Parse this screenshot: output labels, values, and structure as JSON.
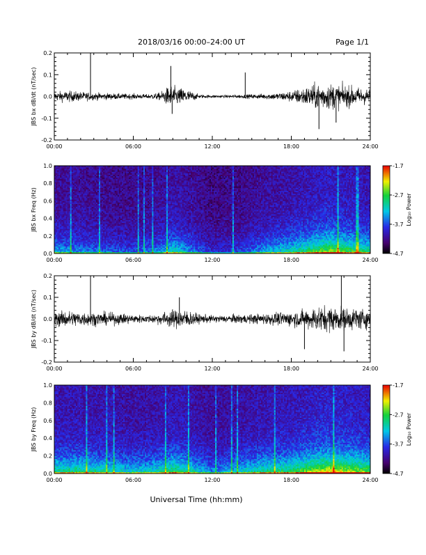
{
  "header": {
    "title": "2018/03/16  00:00–24:00 UT",
    "page_label": "Page 1/1"
  },
  "footer": {
    "xlabel": "Universal Time (hh:mm)"
  },
  "chart_data": [
    {
      "type": "line",
      "id": "bx-waveform",
      "ylabel": "JBS bx dB/dt (nT/sec)",
      "x_ticks": [
        "00:00",
        "06:00",
        "12:00",
        "18:00",
        "24:00"
      ],
      "xlim_hours": [
        0,
        24
      ],
      "ylim": [
        -0.2,
        0.2
      ],
      "y_ticks": [
        "-0.2",
        "-0.1",
        "0.0",
        "0.1",
        "0.2"
      ],
      "color": "#000000",
      "envelope": [
        {
          "t": 0.0,
          "amp": 0.025
        },
        {
          "t": 1.0,
          "amp": 0.03
        },
        {
          "t": 2.0,
          "amp": 0.025
        },
        {
          "t": 3.0,
          "amp": 0.02
        },
        {
          "t": 4.0,
          "amp": 0.018
        },
        {
          "t": 5.0,
          "amp": 0.015
        },
        {
          "t": 6.0,
          "amp": 0.015
        },
        {
          "t": 7.0,
          "amp": 0.012
        },
        {
          "t": 8.0,
          "amp": 0.02
        },
        {
          "t": 8.8,
          "amp": 0.06
        },
        {
          "t": 9.3,
          "amp": 0.05
        },
        {
          "t": 10.0,
          "amp": 0.04
        },
        {
          "t": 11.0,
          "amp": 0.01
        },
        {
          "t": 12.0,
          "amp": 0.008
        },
        {
          "t": 13.0,
          "amp": 0.008
        },
        {
          "t": 14.0,
          "amp": 0.01
        },
        {
          "t": 15.0,
          "amp": 0.012
        },
        {
          "t": 16.0,
          "amp": 0.015
        },
        {
          "t": 17.0,
          "amp": 0.02
        },
        {
          "t": 18.0,
          "amp": 0.03
        },
        {
          "t": 19.0,
          "amp": 0.05
        },
        {
          "t": 20.0,
          "amp": 0.07
        },
        {
          "t": 21.0,
          "amp": 0.07
        },
        {
          "t": 22.0,
          "amp": 0.06
        },
        {
          "t": 23.0,
          "amp": 0.05
        },
        {
          "t": 24.0,
          "amp": 0.04
        }
      ],
      "spikes": [
        {
          "t": 2.75,
          "value": 0.2
        },
        {
          "t": 8.85,
          "value": 0.14
        },
        {
          "t": 8.95,
          "value": -0.08
        },
        {
          "t": 14.5,
          "value": 0.11
        },
        {
          "t": 20.1,
          "value": -0.15
        },
        {
          "t": 21.4,
          "value": -0.12
        }
      ]
    },
    {
      "type": "heatmap",
      "id": "bx-spectrogram",
      "ylabel": "JBS bx Freq (Hz)",
      "x_ticks": [
        "00:00",
        "06:00",
        "12:00",
        "18:00",
        "24:00"
      ],
      "xlim_hours": [
        0,
        24
      ],
      "ylim": [
        0.0,
        1.0
      ],
      "y_ticks": [
        "0.0",
        "0.2",
        "0.4",
        "0.6",
        "0.8",
        "1.0"
      ],
      "colorbar": {
        "label": "Log₁₀ Power",
        "range": [
          -4.7,
          -1.7
        ],
        "ticks": [
          "-1.7",
          "-2.7",
          "-3.7",
          "-4.7"
        ]
      },
      "activity": [
        {
          "t": 0.0,
          "level": 0.35
        },
        {
          "t": 2.0,
          "level": 0.3
        },
        {
          "t": 4.0,
          "level": 0.25
        },
        {
          "t": 6.0,
          "level": 0.22
        },
        {
          "t": 8.0,
          "level": 0.3
        },
        {
          "t": 9.0,
          "level": 0.45
        },
        {
          "t": 10.0,
          "level": 0.35
        },
        {
          "t": 12.0,
          "level": 0.15
        },
        {
          "t": 14.0,
          "level": 0.2
        },
        {
          "t": 16.0,
          "level": 0.35
        },
        {
          "t": 18.0,
          "level": 0.45
        },
        {
          "t": 20.0,
          "level": 0.6
        },
        {
          "t": 21.0,
          "level": 0.65
        },
        {
          "t": 22.0,
          "level": 0.6
        },
        {
          "t": 24.0,
          "level": 0.5
        }
      ]
    },
    {
      "type": "line",
      "id": "by-waveform",
      "ylabel": "JBS by dB/dt (nT/sec)",
      "x_ticks": [
        "00:00",
        "06:00",
        "12:00",
        "18:00",
        "24:00"
      ],
      "xlim_hours": [
        0,
        24
      ],
      "ylim": [
        -0.2,
        0.2
      ],
      "y_ticks": [
        "-0.2",
        "-0.1",
        "0.0",
        "0.1",
        "0.2"
      ],
      "color": "#000000",
      "envelope": [
        {
          "t": 0.0,
          "amp": 0.04
        },
        {
          "t": 1.0,
          "amp": 0.045
        },
        {
          "t": 2.0,
          "amp": 0.04
        },
        {
          "t": 3.0,
          "amp": 0.035
        },
        {
          "t": 4.0,
          "amp": 0.035
        },
        {
          "t": 5.0,
          "amp": 0.03
        },
        {
          "t": 6.0,
          "amp": 0.025
        },
        {
          "t": 7.0,
          "amp": 0.02
        },
        {
          "t": 8.0,
          "amp": 0.03
        },
        {
          "t": 9.0,
          "amp": 0.05
        },
        {
          "t": 10.0,
          "amp": 0.05
        },
        {
          "t": 11.0,
          "amp": 0.025
        },
        {
          "t": 12.0,
          "amp": 0.02
        },
        {
          "t": 13.0,
          "amp": 0.02
        },
        {
          "t": 14.0,
          "amp": 0.025
        },
        {
          "t": 15.0,
          "amp": 0.025
        },
        {
          "t": 16.0,
          "amp": 0.03
        },
        {
          "t": 17.0,
          "amp": 0.035
        },
        {
          "t": 18.0,
          "amp": 0.04
        },
        {
          "t": 19.0,
          "amp": 0.05
        },
        {
          "t": 20.0,
          "amp": 0.07
        },
        {
          "t": 21.0,
          "amp": 0.07
        },
        {
          "t": 22.0,
          "amp": 0.06
        },
        {
          "t": 23.0,
          "amp": 0.06
        },
        {
          "t": 24.0,
          "amp": 0.05
        }
      ],
      "spikes": [
        {
          "t": 2.75,
          "value": 0.2
        },
        {
          "t": 21.8,
          "value": 0.2
        },
        {
          "t": 9.5,
          "value": 0.1
        },
        {
          "t": 19.0,
          "value": -0.14
        },
        {
          "t": 22.0,
          "value": -0.15
        }
      ]
    },
    {
      "type": "heatmap",
      "id": "by-spectrogram",
      "ylabel": "JBS by Freq (Hz)",
      "x_ticks": [
        "00:00",
        "06:00",
        "12:00",
        "18:00",
        "24:00"
      ],
      "xlim_hours": [
        0,
        24
      ],
      "ylim": [
        0.0,
        1.0
      ],
      "y_ticks": [
        "0.0",
        "0.2",
        "0.4",
        "0.6",
        "0.8",
        "1.0"
      ],
      "colorbar": {
        "label": "Log₁₀ Power",
        "range": [
          -4.7,
          -1.7
        ],
        "ticks": [
          "-1.7",
          "-2.7",
          "-3.7",
          "-4.7"
        ]
      },
      "activity": [
        {
          "t": 0.0,
          "level": 0.5
        },
        {
          "t": 2.0,
          "level": 0.5
        },
        {
          "t": 4.0,
          "level": 0.45
        },
        {
          "t": 6.0,
          "level": 0.4
        },
        {
          "t": 8.0,
          "level": 0.45
        },
        {
          "t": 9.0,
          "level": 0.55
        },
        {
          "t": 10.0,
          "level": 0.5
        },
        {
          "t": 12.0,
          "level": 0.3
        },
        {
          "t": 14.0,
          "level": 0.4
        },
        {
          "t": 16.0,
          "level": 0.5
        },
        {
          "t": 18.0,
          "level": 0.55
        },
        {
          "t": 20.0,
          "level": 0.7
        },
        {
          "t": 21.0,
          "level": 0.75
        },
        {
          "t": 22.0,
          "level": 0.7
        },
        {
          "t": 24.0,
          "level": 0.6
        }
      ]
    }
  ]
}
